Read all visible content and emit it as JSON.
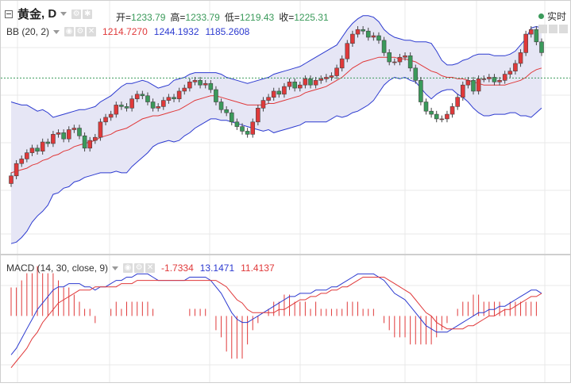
{
  "header": {
    "instrument": "黄金",
    "interval": "D",
    "ohlc": [
      {
        "label": "开=",
        "value": "1233.79"
      },
      {
        "label": "高=",
        "value": "1233.79"
      },
      {
        "label": "低=",
        "value": "1219.43"
      },
      {
        "label": "收=",
        "value": "1225.31"
      }
    ],
    "realtime_label": "实时"
  },
  "bb_legend": {
    "label": "BB (20, 2)",
    "middle": "1214.7270",
    "upper": "1244.1932",
    "lower": "1185.2608"
  },
  "macd_legend": {
    "label": "MACD (14, 30, close, 9)",
    "histogram": "-1.7334",
    "macd": "13.1471",
    "signal": "11.4137"
  },
  "colors": {
    "up": "#e0393a",
    "down": "#3a9a5a",
    "band_fill": "#e6e6f5",
    "band_line": "#2c3ad0",
    "mid_line": "#e0393a",
    "macd_line": "#2c3ad0",
    "signal_line": "#e0393a",
    "hist": "#e0393a",
    "grid": "#e8e8e8",
    "current_price": "#3a9a5a"
  },
  "chart_data": [
    {
      "type": "candlestick",
      "series_name": "黄金",
      "close": [
        1170,
        1178,
        1181,
        1185,
        1188,
        1186,
        1192,
        1191,
        1197,
        1198,
        1194,
        1200,
        1201,
        1196,
        1188,
        1193,
        1195,
        1205,
        1208,
        1210,
        1216,
        1215,
        1214,
        1220,
        1223,
        1222,
        1218,
        1214,
        1215,
        1219,
        1221,
        1220,
        1225,
        1227,
        1231,
        1232,
        1229,
        1230,
        1226,
        1218,
        1213,
        1211,
        1205,
        1202,
        1199,
        1197,
        1205,
        1214,
        1219,
        1221,
        1225,
        1223,
        1228,
        1231,
        1227,
        1229,
        1233,
        1229,
        1232,
        1233,
        1234,
        1235,
        1240,
        1246,
        1256,
        1262,
        1265,
        1264,
        1260,
        1261,
        1258,
        1250,
        1244,
        1244,
        1247,
        1248,
        1240,
        1232,
        1218,
        1212,
        1210,
        1207,
        1207,
        1210,
        1215,
        1221,
        1229,
        1232,
        1225,
        1233,
        1233,
        1234,
        1231,
        1232,
        1236,
        1238,
        1243,
        1250,
        1262,
        1265,
        1257,
        1250
      ],
      "open": [
        1165,
        1170,
        1178,
        1181,
        1185,
        1188,
        1186,
        1192,
        1191,
        1197,
        1198,
        1194,
        1200,
        1201,
        1196,
        1188,
        1193,
        1195,
        1205,
        1208,
        1210,
        1216,
        1215,
        1214,
        1220,
        1223,
        1222,
        1218,
        1214,
        1215,
        1219,
        1221,
        1220,
        1225,
        1227,
        1231,
        1232,
        1229,
        1230,
        1226,
        1218,
        1213,
        1211,
        1205,
        1202,
        1199,
        1197,
        1205,
        1214,
        1219,
        1221,
        1225,
        1223,
        1228,
        1231,
        1227,
        1229,
        1233,
        1229,
        1232,
        1233,
        1234,
        1235,
        1240,
        1246,
        1256,
        1262,
        1265,
        1264,
        1260,
        1261,
        1258,
        1250,
        1244,
        1244,
        1247,
        1248,
        1240,
        1232,
        1218,
        1212,
        1210,
        1207,
        1207,
        1210,
        1215,
        1221,
        1229,
        1232,
        1225,
        1233,
        1233,
        1234,
        1231,
        1232,
        1236,
        1238,
        1243,
        1250,
        1262,
        1265,
        1257
      ],
      "current_price": 1233.5
    },
    {
      "type": "line",
      "indicator": "BB (20, 2)",
      "series": [
        {
          "name": "upper",
          "values": [
            1218,
            1217,
            1216,
            1216,
            1214,
            1212,
            1213,
            1211,
            1208,
            1209,
            1210,
            1211,
            1212,
            1213,
            1213,
            1214,
            1215,
            1218,
            1220,
            1222,
            1225,
            1228,
            1230,
            1230,
            1231,
            1232,
            1231,
            1229,
            1227,
            1228,
            1229,
            1232,
            1233,
            1234,
            1236,
            1237,
            1237,
            1237,
            1237,
            1237,
            1236,
            1234,
            1233,
            1232,
            1231,
            1230,
            1231,
            1232,
            1233,
            1234,
            1236,
            1237,
            1238,
            1239,
            1240,
            1241,
            1243,
            1245,
            1247,
            1249,
            1251,
            1253,
            1255,
            1260,
            1265,
            1269,
            1272,
            1274,
            1274,
            1273,
            1270,
            1265,
            1262,
            1260,
            1259,
            1258,
            1258,
            1257,
            1257,
            1257,
            1256,
            1251,
            1245,
            1242,
            1242,
            1243,
            1245,
            1246,
            1248,
            1249,
            1249,
            1249,
            1248,
            1248,
            1248,
            1249,
            1251,
            1255,
            1259,
            1266,
            1267,
            1266
          ]
        },
        {
          "name": "middle",
          "values": [
            1172,
            1173,
            1174,
            1175,
            1177,
            1178,
            1180,
            1181,
            1183,
            1184,
            1186,
            1187,
            1189,
            1190,
            1191,
            1192,
            1193,
            1195,
            1196,
            1197,
            1199,
            1200,
            1201,
            1203,
            1205,
            1207,
            1208,
            1209,
            1209,
            1210,
            1211,
            1212,
            1213,
            1215,
            1217,
            1219,
            1220,
            1221,
            1222,
            1222,
            1221,
            1220,
            1219,
            1218,
            1217,
            1216,
            1216,
            1216,
            1216,
            1217,
            1217,
            1218,
            1219,
            1220,
            1221,
            1222,
            1224,
            1225,
            1226,
            1227,
            1228,
            1230,
            1232,
            1234,
            1237,
            1240,
            1242,
            1244,
            1245,
            1246,
            1247,
            1247,
            1247,
            1247,
            1246,
            1246,
            1245,
            1244,
            1242,
            1240,
            1238,
            1237,
            1235,
            1234,
            1234,
            1233,
            1233,
            1232,
            1231,
            1230,
            1229,
            1229,
            1229,
            1229,
            1229,
            1230,
            1231,
            1232,
            1234,
            1237,
            1239,
            1240
          ]
        },
        {
          "name": "lower",
          "values": [
            1126,
            1127,
            1130,
            1134,
            1140,
            1144,
            1147,
            1151,
            1158,
            1159,
            1162,
            1163,
            1166,
            1167,
            1169,
            1170,
            1171,
            1172,
            1172,
            1172,
            1173,
            1172,
            1172,
            1176,
            1179,
            1182,
            1185,
            1189,
            1191,
            1192,
            1193,
            1192,
            1193,
            1196,
            1198,
            1201,
            1203,
            1205,
            1207,
            1207,
            1206,
            1206,
            1205,
            1204,
            1203,
            1202,
            1201,
            1200,
            1199,
            1200,
            1198,
            1199,
            1200,
            1201,
            1202,
            1203,
            1205,
            1205,
            1205,
            1205,
            1205,
            1207,
            1209,
            1208,
            1209,
            1211,
            1212,
            1214,
            1216,
            1219,
            1224,
            1229,
            1232,
            1234,
            1233,
            1234,
            1232,
            1231,
            1227,
            1223,
            1220,
            1223,
            1225,
            1226,
            1226,
            1223,
            1221,
            1218,
            1214,
            1211,
            1209,
            1209,
            1210,
            1210,
            1210,
            1211,
            1211,
            1209,
            1209,
            1208,
            1211,
            1214
          ]
        }
      ]
    },
    {
      "type": "line",
      "indicator": "MACD (14, 30, close, 9)",
      "series": [
        {
          "name": "macd",
          "values": [
            -12,
            -10,
            -7,
            -4,
            -1,
            2,
            4,
            6,
            8,
            9,
            9,
            10,
            10,
            10,
            9,
            9,
            8,
            9,
            9,
            10,
            11,
            11,
            12,
            12,
            13,
            13,
            13,
            12,
            11,
            11,
            11,
            11,
            11,
            11,
            12,
            12,
            12,
            12,
            11,
            9,
            7,
            4,
            1,
            -1,
            -2,
            -2,
            -1,
            0,
            1,
            2,
            3,
            4,
            5,
            6,
            6,
            7,
            7,
            7,
            8,
            8,
            8,
            9,
            9,
            10,
            11,
            12,
            13,
            13,
            13,
            13,
            12,
            11,
            9,
            7,
            6,
            5,
            3,
            1,
            -1,
            -3,
            -4,
            -5,
            -5,
            -5,
            -4,
            -3,
            -2,
            -1,
            0,
            1,
            1,
            2,
            2,
            3,
            3,
            4,
            5,
            6,
            7,
            8,
            8,
            7
          ]
        },
        {
          "name": "signal",
          "values": [
            -16,
            -14,
            -12,
            -10,
            -7,
            -5,
            -2,
            0,
            2,
            4,
            5,
            6,
            7,
            8,
            8,
            8,
            9,
            9,
            9,
            9,
            9,
            10,
            10,
            10,
            11,
            11,
            11,
            11,
            11,
            11,
            11,
            11,
            11,
            11,
            11,
            11,
            11,
            11,
            11,
            11,
            10,
            9,
            7,
            5,
            4,
            2,
            1,
            1,
            1,
            1,
            1,
            2,
            2,
            3,
            4,
            5,
            5,
            6,
            6,
            7,
            7,
            8,
            8,
            9,
            9,
            10,
            11,
            12,
            12,
            12,
            12,
            12,
            11,
            10,
            9,
            8,
            7,
            5,
            3,
            1,
            0,
            -2,
            -3,
            -4,
            -4,
            -4,
            -4,
            -3,
            -3,
            -2,
            -1,
            0,
            0,
            1,
            2,
            2,
            3,
            4,
            5,
            6,
            6,
            7
          ]
        }
      ]
    }
  ]
}
